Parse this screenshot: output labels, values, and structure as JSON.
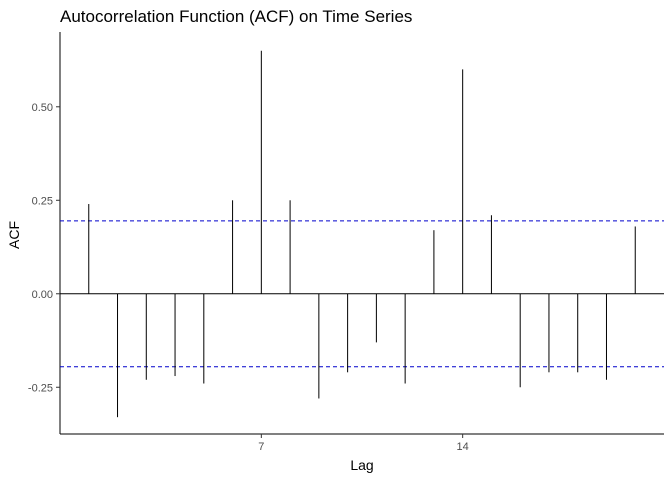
{
  "chart_data": {
    "type": "bar",
    "style": "acf-lollipop",
    "title": "Autocorrelation Function (ACF) on Time Series",
    "xlabel": "Lag",
    "ylabel": "ACF",
    "x": [
      1,
      2,
      3,
      4,
      5,
      6,
      7,
      8,
      9,
      10,
      11,
      12,
      13,
      14,
      15,
      16,
      17,
      18,
      19,
      20
    ],
    "values": [
      0.24,
      -0.33,
      -0.23,
      -0.22,
      -0.24,
      0.25,
      0.65,
      0.25,
      -0.28,
      -0.21,
      -0.13,
      -0.24,
      0.17,
      0.6,
      0.21,
      -0.25,
      -0.21,
      -0.21,
      -0.23,
      0.18
    ],
    "x_ticks": [
      7,
      14
    ],
    "x_tick_labels": [
      "7",
      "14"
    ],
    "y_ticks": [
      -0.25,
      0,
      0.25,
      0.5
    ],
    "y_tick_labels": [
      "-0.25",
      "0.00",
      "0.25",
      "0.50"
    ],
    "xlim": [
      0,
      21
    ],
    "ylim": [
      -0.375,
      0.7
    ],
    "confidence_bound": 0.195,
    "colors": {
      "stem": "#000000",
      "bound": "#0000cc",
      "axis": "#000000"
    },
    "grid": false,
    "legend": "none"
  }
}
